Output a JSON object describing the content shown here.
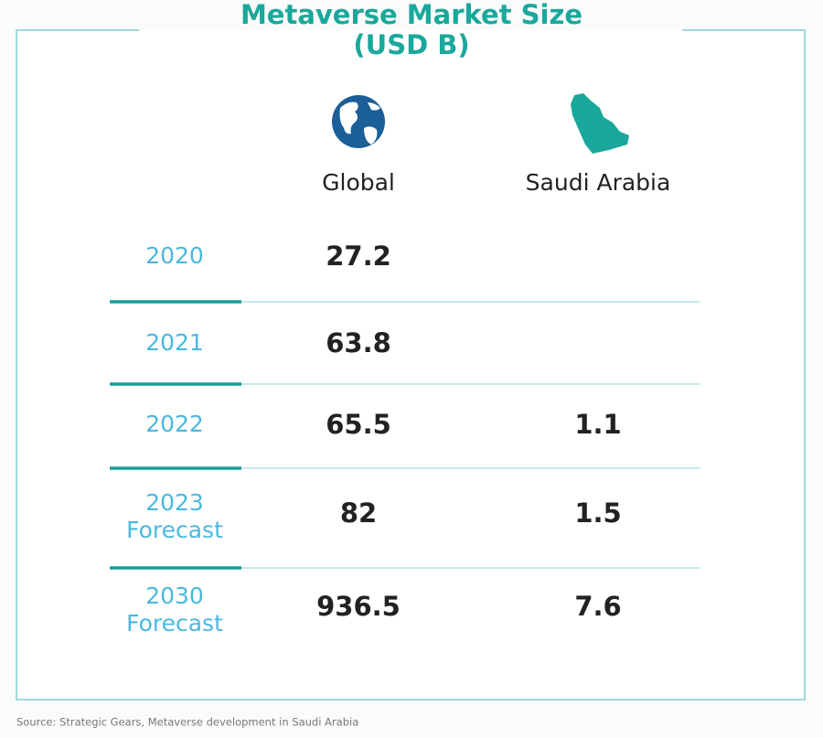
{
  "header": {
    "title": "Metaverse Market Size",
    "subtitle": "(USD B)"
  },
  "table": {
    "columns": [
      "Global",
      "Saudi Arabia"
    ],
    "rows": [
      {
        "year": "2020",
        "global": 27.2
      },
      {
        "year": "2021",
        "global": 63.8
      },
      {
        "year": "2022",
        "global": 65.5,
        "saudi": 1.1
      },
      {
        "year": "2023",
        "note": "Forecast",
        "global": 82,
        "saudi": 1.5
      },
      {
        "year": "2030",
        "note": "Forecast",
        "global": 936.5,
        "saudi": 7.6
      }
    ]
  },
  "footer": {
    "source": "Source: Strategic Gears, Metaverse development in Saudi Arabia"
  }
}
